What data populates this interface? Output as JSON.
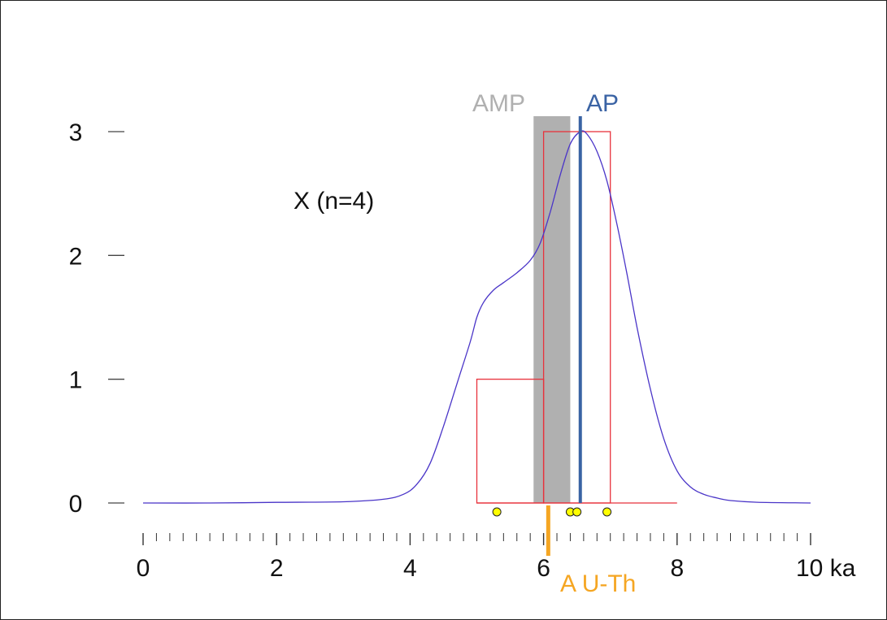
{
  "chart_data": {
    "type": "histogram",
    "panel_label": "X (n=4)",
    "xlim": [
      0,
      10
    ],
    "ylim": [
      0,
      3
    ],
    "x_ticks": [
      0,
      2,
      4,
      6,
      8,
      10
    ],
    "x_tick_labels": [
      "0",
      "2",
      "4",
      "6",
      "8",
      "10 ka"
    ],
    "x_minor_step": 0.2,
    "y_ticks": [
      0,
      1,
      2,
      3
    ],
    "y_tick_labels": [
      "0",
      "1",
      "2",
      "3"
    ],
    "histogram": {
      "bins": [
        {
          "x0": 5,
          "x1": 6,
          "count": 1
        },
        {
          "x0": 6,
          "x1": 7,
          "count": 3
        }
      ],
      "color": "#e8323c"
    },
    "density_curve": {
      "color": "#4a35c8",
      "x": [
        0,
        1,
        2,
        3,
        3.6,
        3.9,
        4.1,
        4.3,
        4.5,
        4.7,
        4.9,
        5.0,
        5.1,
        5.25,
        5.4,
        5.6,
        5.8,
        5.95,
        6.1,
        6.25,
        6.4,
        6.55,
        6.65,
        6.8,
        6.95,
        7.1,
        7.25,
        7.4,
        7.6,
        7.8,
        8.0,
        8.2,
        8.4,
        8.6,
        8.8,
        9.2,
        10
      ],
      "y": [
        0,
        0,
        0.005,
        0.01,
        0.03,
        0.07,
        0.15,
        0.32,
        0.62,
        0.96,
        1.3,
        1.5,
        1.62,
        1.72,
        1.78,
        1.86,
        1.96,
        2.1,
        2.35,
        2.65,
        2.9,
        3.0,
        2.98,
        2.84,
        2.6,
        2.25,
        1.85,
        1.42,
        0.92,
        0.52,
        0.26,
        0.13,
        0.07,
        0.04,
        0.02,
        0.006,
        0
      ]
    },
    "amp_band": {
      "label": "AMP",
      "x0": 5.85,
      "x1": 6.4,
      "color": "#b0b0b0"
    },
    "ap_line": {
      "label": "AP",
      "x": 6.55,
      "color": "#3a63a4"
    },
    "a_uth_marker": {
      "label": "A U-Th",
      "x": 6.07,
      "color": "#f5a623"
    },
    "sample_points": {
      "x": [
        5.3,
        6.4,
        6.5,
        6.95
      ],
      "color": "#ffff00"
    }
  }
}
